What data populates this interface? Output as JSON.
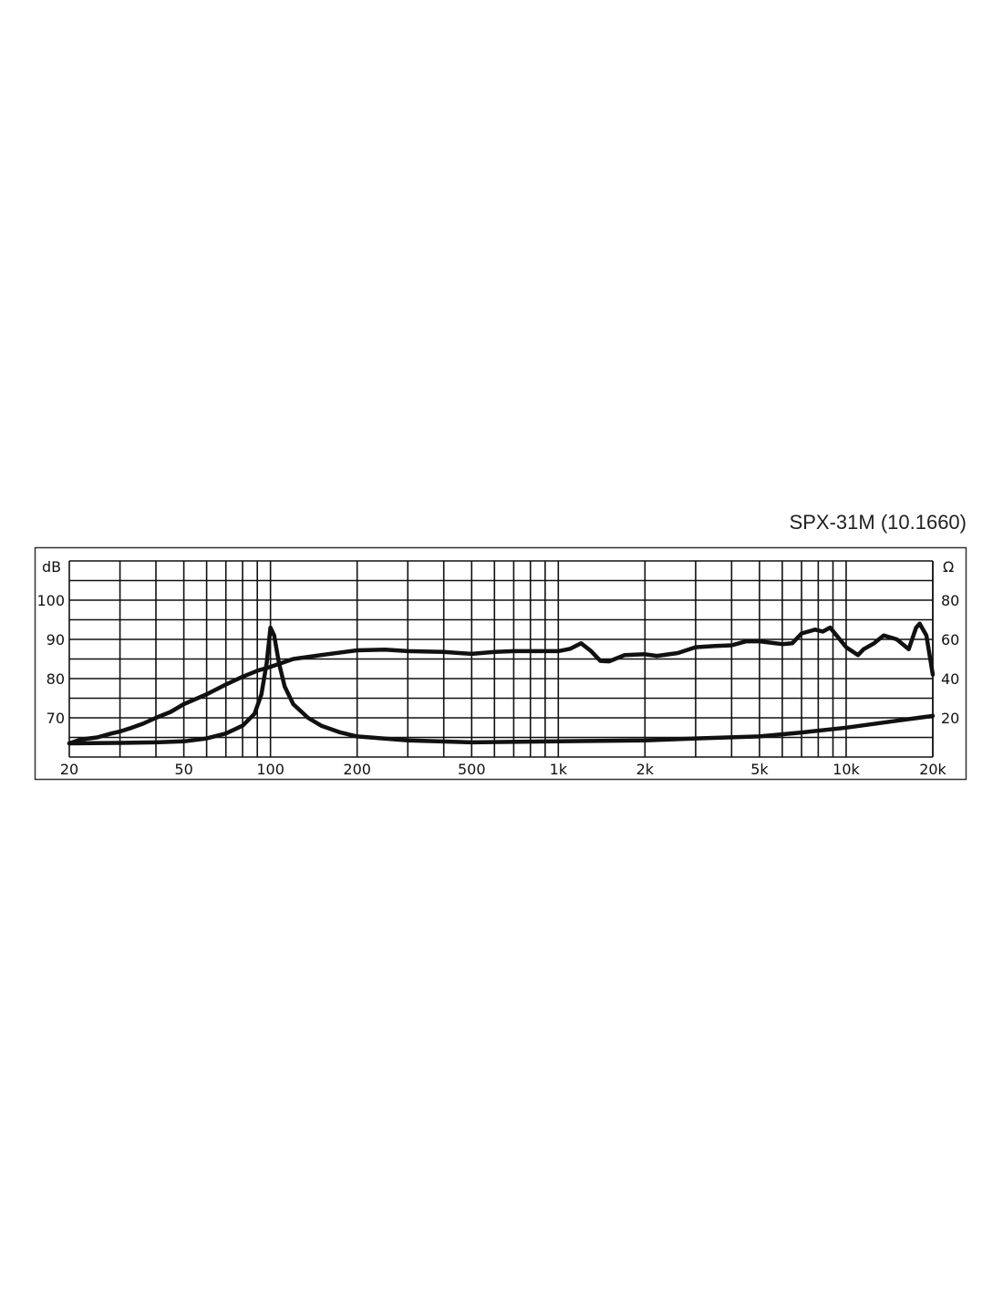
{
  "chart_data": {
    "type": "line",
    "title": "SPX-31M (10.1660)",
    "x_scale": "log",
    "xlim": [
      20,
      20000
    ],
    "x_ticks": [
      20,
      50,
      100,
      200,
      500,
      1000,
      2000,
      5000,
      10000,
      20000
    ],
    "x_tick_labels": [
      "20",
      "50",
      "100",
      "200",
      "500",
      "1k",
      "2k",
      "5k",
      "10k",
      "20k"
    ],
    "y_left": {
      "label": "dB",
      "lim": [
        60,
        110
      ],
      "ticks": [
        70,
        80,
        90,
        100
      ],
      "tick_labels": [
        "70",
        "80",
        "90",
        "100"
      ]
    },
    "y_right": {
      "label": "Ω",
      "lim": [
        0,
        100
      ],
      "ticks": [
        20,
        40,
        60,
        80
      ],
      "tick_labels": [
        "20",
        "40",
        "60",
        "80"
      ]
    },
    "grid": true,
    "line_color": "#111111",
    "series": [
      {
        "axis": "left",
        "points": [
          [
            20,
            63.5
          ],
          [
            22,
            64.5
          ],
          [
            25,
            65
          ],
          [
            28,
            66
          ],
          [
            30,
            66.5
          ],
          [
            33,
            67.5
          ],
          [
            36,
            68.5
          ],
          [
            40,
            70
          ],
          [
            45,
            71.5
          ],
          [
            50,
            73.5
          ],
          [
            60,
            76
          ],
          [
            70,
            78.5
          ],
          [
            80,
            80.5
          ],
          [
            90,
            82
          ],
          [
            100,
            83
          ],
          [
            120,
            85
          ],
          [
            150,
            86
          ],
          [
            200,
            87.2
          ],
          [
            250,
            87.4
          ],
          [
            300,
            87
          ],
          [
            400,
            86.8
          ],
          [
            500,
            86.3
          ],
          [
            600,
            86.8
          ],
          [
            700,
            87
          ],
          [
            800,
            87
          ],
          [
            1000,
            87
          ],
          [
            1100,
            87.6
          ],
          [
            1200,
            89
          ],
          [
            1300,
            87
          ],
          [
            1400,
            84.5
          ],
          [
            1500,
            84.4
          ],
          [
            1700,
            86
          ],
          [
            2000,
            86.2
          ],
          [
            2200,
            85.8
          ],
          [
            2600,
            86.5
          ],
          [
            3000,
            88
          ],
          [
            3500,
            88.3
          ],
          [
            4000,
            88.5
          ],
          [
            4500,
            89.5
          ],
          [
            5000,
            89.5
          ],
          [
            6000,
            88.8
          ],
          [
            6500,
            89
          ],
          [
            7000,
            91.5
          ],
          [
            7800,
            92.5
          ],
          [
            8300,
            92
          ],
          [
            8800,
            93
          ],
          [
            10000,
            88
          ],
          [
            11000,
            86
          ],
          [
            11500,
            87.5
          ],
          [
            12500,
            89
          ],
          [
            13500,
            91
          ],
          [
            15000,
            90
          ],
          [
            16500,
            87.5
          ],
          [
            17500,
            93
          ],
          [
            18000,
            94
          ],
          [
            19000,
            91
          ],
          [
            19500,
            86
          ],
          [
            20000,
            81
          ]
        ]
      },
      {
        "axis": "right",
        "points": [
          [
            20,
            7
          ],
          [
            30,
            7.2
          ],
          [
            40,
            7.5
          ],
          [
            50,
            8
          ],
          [
            60,
            9.5
          ],
          [
            70,
            12
          ],
          [
            80,
            16
          ],
          [
            88,
            22
          ],
          [
            93,
            32
          ],
          [
            97,
            48
          ],
          [
            100,
            66
          ],
          [
            103,
            62
          ],
          [
            107,
            48
          ],
          [
            112,
            36
          ],
          [
            120,
            27
          ],
          [
            135,
            20
          ],
          [
            150,
            16
          ],
          [
            175,
            12.5
          ],
          [
            200,
            10.5
          ],
          [
            300,
            8.5
          ],
          [
            500,
            7.5
          ],
          [
            1000,
            8
          ],
          [
            2000,
            8.5
          ],
          [
            3000,
            9.5
          ],
          [
            5000,
            10.5
          ],
          [
            7000,
            12.5
          ],
          [
            10000,
            15
          ],
          [
            15000,
            18.5
          ],
          [
            20000,
            21
          ]
        ]
      }
    ]
  }
}
